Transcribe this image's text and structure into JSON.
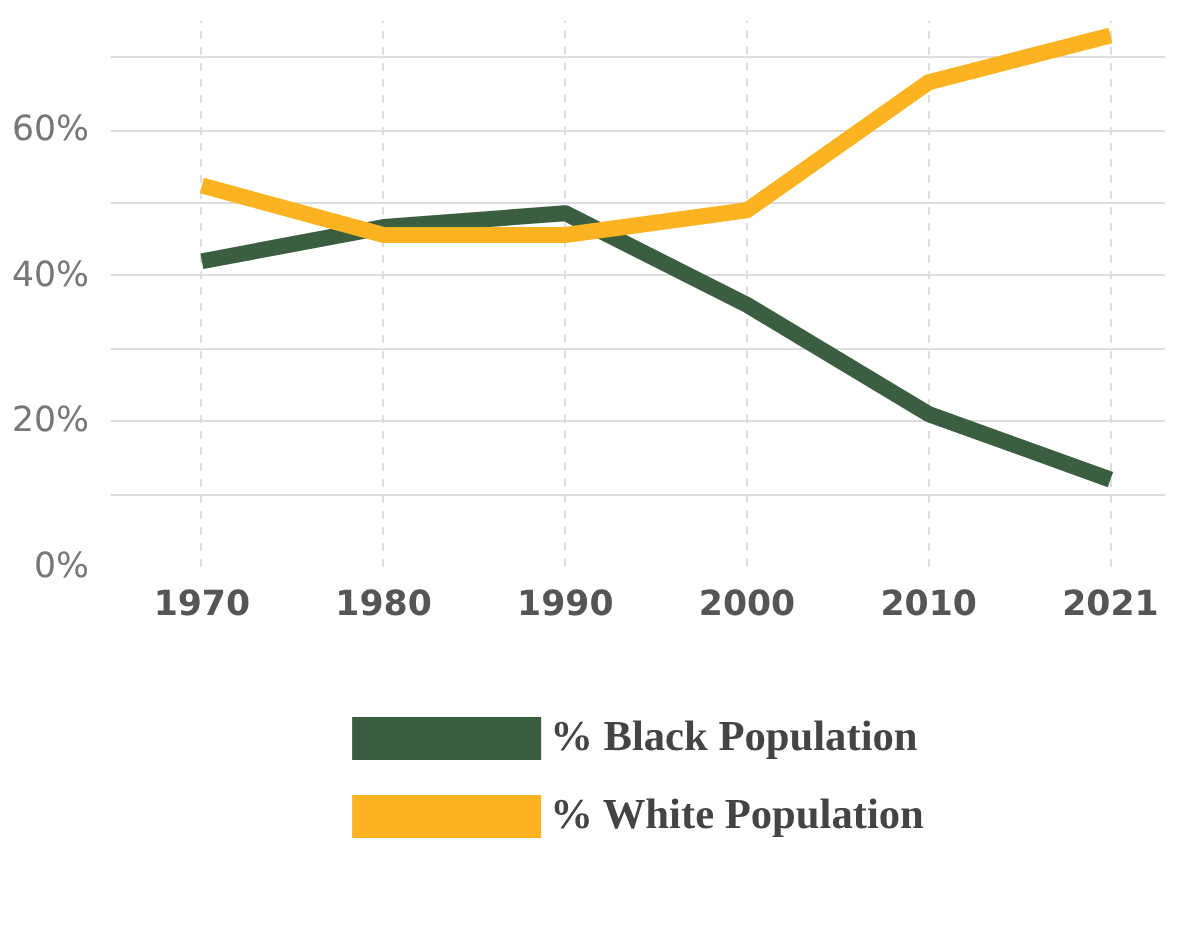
{
  "chart_data": {
    "type": "line",
    "categories": [
      "1970",
      "1980",
      "1990",
      "2000",
      "2010",
      "2021"
    ],
    "series": [
      {
        "name": "% Black Population",
        "color": "#3b5e40",
        "values": [
          42,
          46.7,
          48.6,
          36,
          21,
          12
        ]
      },
      {
        "name": "% White Population",
        "color": "#fbb321",
        "values": [
          52.4,
          45.6,
          45.6,
          49,
          66.6,
          73
        ]
      }
    ],
    "ylim": [
      0,
      75
    ],
    "yticks": [
      {
        "value": 0,
        "label": "0%"
      },
      {
        "value": 10,
        "label": null
      },
      {
        "value": 20,
        "label": "20%"
      },
      {
        "value": 30,
        "label": null
      },
      {
        "value": 40,
        "label": "40%"
      },
      {
        "value": 50,
        "label": null
      },
      {
        "value": 60,
        "label": "60%"
      },
      {
        "value": 70,
        "label": null
      }
    ],
    "grid": true,
    "legend": "bottom",
    "line_style": "solid",
    "marker": "none"
  }
}
